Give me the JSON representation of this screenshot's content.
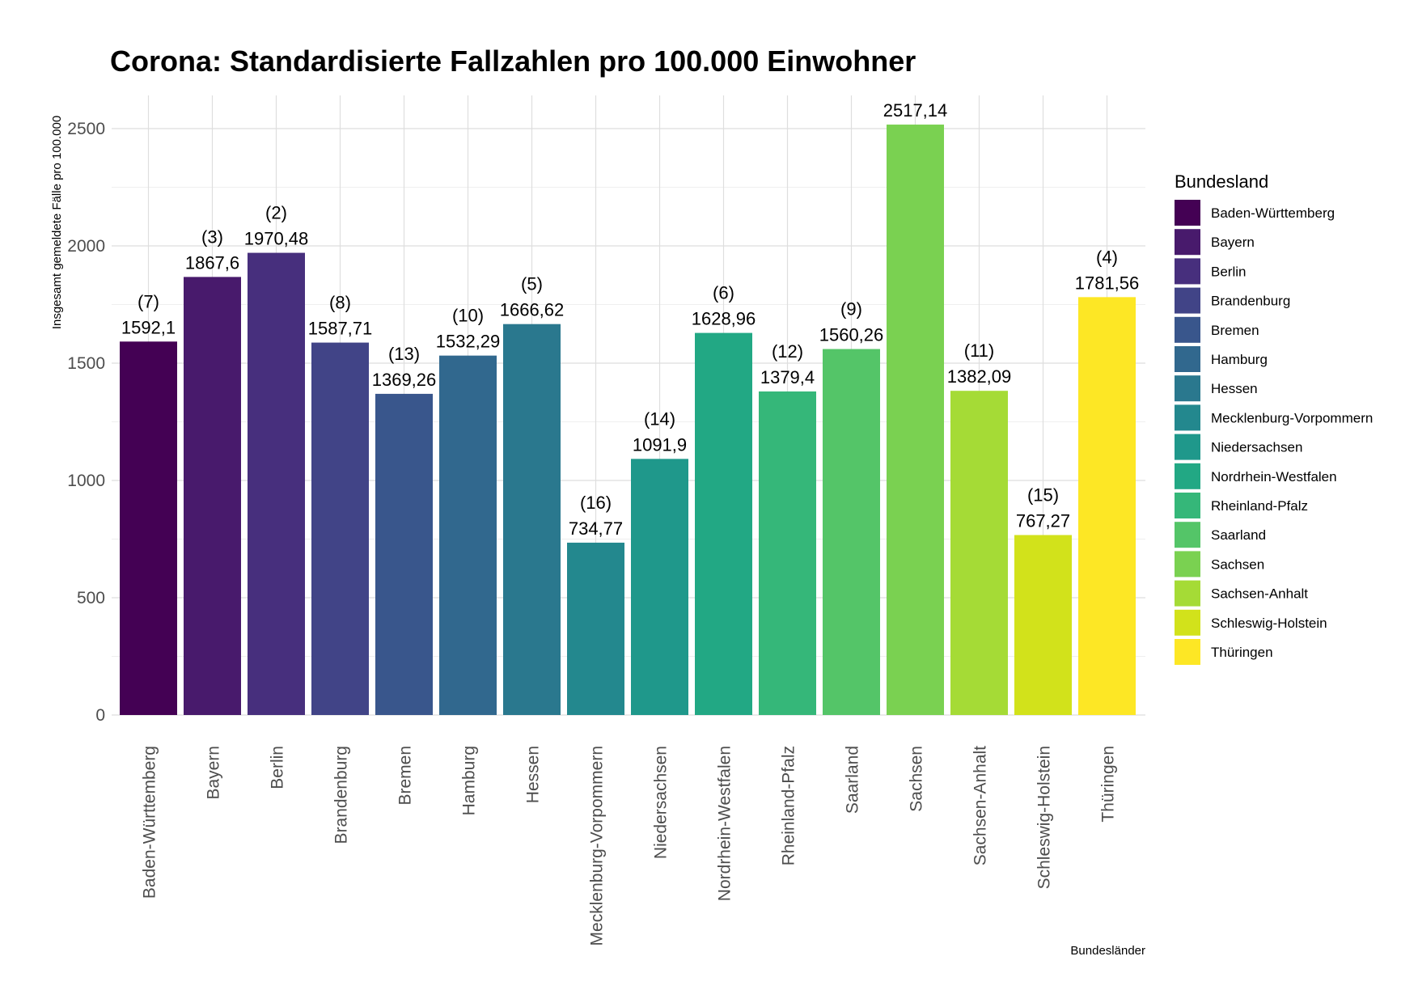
{
  "chart_data": {
    "type": "bar",
    "title": "Corona: Standardisierte Fallzahlen pro 100.000 Einwohner",
    "xlabel": "Bundesländer",
    "ylabel": "Insgesamt gemeldete Fälle pro 100.000",
    "ylim": [
      0,
      2620
    ],
    "yticks": [
      0,
      500,
      1000,
      1500,
      2000,
      2500
    ],
    "grid": true,
    "legend": {
      "title": "Bundesland",
      "position": "right"
    },
    "categories": [
      "Baden-Württemberg",
      "Bayern",
      "Berlin",
      "Brandenburg",
      "Bremen",
      "Hamburg",
      "Hessen",
      "Mecklenburg-Vorpommern",
      "Niedersachsen",
      "Nordrhein-Westfalen",
      "Rheinland-Pfalz",
      "Saarland",
      "Sachsen",
      "Sachsen-Anhalt",
      "Schleswig-Holstein",
      "Thüringen"
    ],
    "values": [
      1592.1,
      1867.6,
      1970.48,
      1587.71,
      1369.26,
      1532.29,
      1666.62,
      734.77,
      1091.9,
      1628.96,
      1379.4,
      1560.26,
      2517.14,
      1382.09,
      767.27,
      1781.56
    ],
    "value_labels": [
      "1592,1",
      "1867,6",
      "1970,48",
      "1587,71",
      "1369,26",
      "1532,29",
      "1666,62",
      "734,77",
      "1091,9",
      "1628,96",
      "1379,4",
      "1560,26",
      "2517,14",
      "1382,09",
      "767,27",
      "1781,56"
    ],
    "rank_labels": [
      "(7)",
      "(3)",
      "(2)",
      "(8)",
      "(13)",
      "(10)",
      "(5)",
      "(16)",
      "(14)",
      "(6)",
      "(12)",
      "(9)",
      "",
      "(11)",
      "(15)",
      "(4)"
    ],
    "colors": [
      "#440154",
      "#481A6C",
      "#472F7D",
      "#414487",
      "#39568C",
      "#31688E",
      "#2A788E",
      "#23888E",
      "#1F988B",
      "#22A884",
      "#35B779",
      "#54C568",
      "#7AD151",
      "#A5DB36",
      "#D2E21B",
      "#FDE725"
    ]
  }
}
